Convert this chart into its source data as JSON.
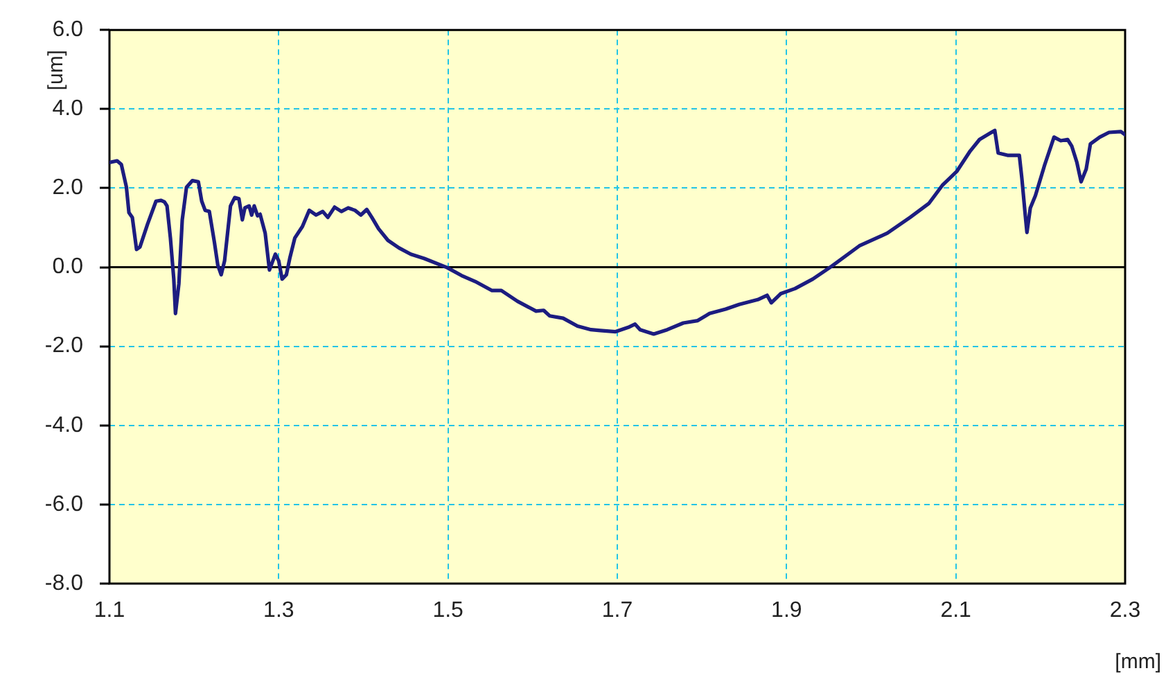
{
  "chart_data": {
    "type": "line",
    "xlabel": "[mm]",
    "ylabel": "[um]",
    "x": [
      1.1,
      1.109,
      1.114,
      1.12,
      1.123,
      1.127,
      1.132,
      1.136,
      1.145,
      1.155,
      1.161,
      1.165,
      1.168,
      1.172,
      1.176,
      1.178,
      1.182,
      1.186,
      1.191,
      1.198,
      1.205,
      1.209,
      1.213,
      1.218,
      1.224,
      1.228,
      1.232,
      1.236,
      1.243,
      1.248,
      1.253,
      1.257,
      1.26,
      1.265,
      1.268,
      1.271,
      1.275,
      1.278,
      1.284,
      1.289,
      1.293,
      1.296,
      1.3,
      1.304,
      1.309,
      1.313,
      1.319,
      1.328,
      1.336,
      1.344,
      1.352,
      1.358,
      1.366,
      1.374,
      1.382,
      1.39,
      1.397,
      1.404,
      1.41,
      1.418,
      1.429,
      1.442,
      1.456,
      1.472,
      1.499,
      1.516,
      1.532,
      1.552,
      1.563,
      1.582,
      1.604,
      1.613,
      1.62,
      1.636,
      1.653,
      1.669,
      1.68,
      1.698,
      1.713,
      1.721,
      1.727,
      1.743,
      1.759,
      1.778,
      1.795,
      1.809,
      1.828,
      1.844,
      1.866,
      1.877,
      1.882,
      1.893,
      1.91,
      1.931,
      1.953,
      1.986,
      2.019,
      2.046,
      2.068,
      2.084,
      2.101,
      2.117,
      2.128,
      2.142,
      2.146,
      2.15,
      2.161,
      2.175,
      2.178,
      2.182,
      2.184,
      2.188,
      2.194,
      2.205,
      2.216,
      2.224,
      2.232,
      2.237,
      2.243,
      2.248,
      2.254,
      2.259,
      2.27,
      2.281,
      2.295,
      2.3
    ],
    "series": [
      {
        "color": "#1c1c80",
        "values": [
          2.65,
          2.69,
          2.6,
          2.03,
          1.38,
          1.26,
          0.45,
          0.51,
          1.09,
          1.67,
          1.69,
          1.65,
          1.55,
          0.74,
          -0.3,
          -1.17,
          -0.42,
          1.2,
          2.02,
          2.19,
          2.16,
          1.67,
          1.44,
          1.41,
          0.63,
          0.05,
          -0.19,
          0.16,
          1.55,
          1.76,
          1.73,
          1.2,
          1.5,
          1.55,
          1.32,
          1.55,
          1.3,
          1.34,
          0.86,
          -0.07,
          0.16,
          0.33,
          0.16,
          -0.3,
          -0.19,
          0.22,
          0.74,
          1.03,
          1.44,
          1.32,
          1.41,
          1.26,
          1.52,
          1.41,
          1.5,
          1.44,
          1.32,
          1.46,
          1.26,
          0.97,
          0.68,
          0.49,
          0.33,
          0.22,
          -0.01,
          -0.21,
          -0.36,
          -0.59,
          -0.59,
          -0.86,
          -1.11,
          -1.09,
          -1.23,
          -1.29,
          -1.49,
          -1.58,
          -1.6,
          -1.63,
          -1.52,
          -1.44,
          -1.58,
          -1.69,
          -1.58,
          -1.41,
          -1.35,
          -1.17,
          -1.06,
          -0.94,
          -0.82,
          -0.71,
          -0.9,
          -0.67,
          -0.54,
          -0.3,
          0.02,
          0.54,
          0.86,
          1.26,
          1.61,
          2.07,
          2.42,
          2.94,
          3.23,
          3.41,
          3.46,
          2.89,
          2.83,
          2.83,
          2.25,
          1.32,
          0.88,
          1.5,
          1.81,
          2.59,
          3.29,
          3.2,
          3.23,
          3.06,
          2.65,
          2.16,
          2.48,
          3.12,
          3.29,
          3.41,
          3.43,
          3.35
        ]
      }
    ],
    "xlim": [
      1.1,
      2.3
    ],
    "xticks": [
      1.1,
      1.3,
      1.5,
      1.7,
      1.9,
      2.1,
      2.3
    ],
    "ylim": [
      -8,
      6
    ],
    "yticks": [
      {
        "value": -8,
        "label": "-8.0"
      },
      {
        "value": -6,
        "label": "-6.0"
      },
      {
        "value": -4,
        "label": "-4.0"
      },
      {
        "value": -2,
        "label": "-2.0"
      },
      {
        "value": 0,
        "label": "0.0"
      },
      {
        "value": 2,
        "label": "2.0"
      },
      {
        "value": 4,
        "label": "4.0"
      },
      {
        "value": 6,
        "label": "6.0"
      }
    ],
    "ref_lines": [
      {
        "axis": "y",
        "value": 0,
        "color": "#000000"
      }
    ],
    "grid": true,
    "marker": "none",
    "line_style": "solid",
    "legend": false
  }
}
